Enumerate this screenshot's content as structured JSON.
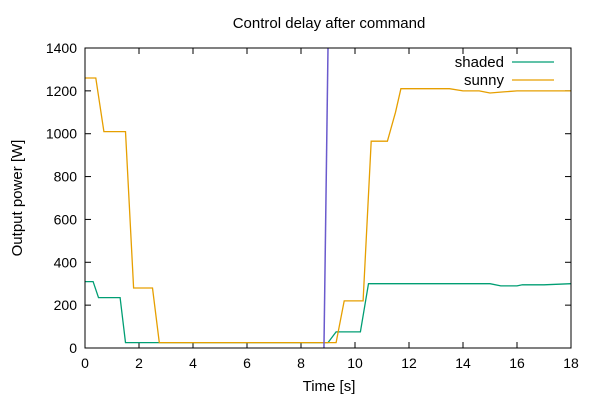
{
  "chart_data": {
    "type": "line",
    "title": "Control delay after command",
    "xlabel": "Time [s]",
    "ylabel": "Output power [W]",
    "xlim": [
      0,
      18
    ],
    "ylim": [
      0,
      1400
    ],
    "xticks": [
      0,
      2,
      4,
      6,
      8,
      10,
      12,
      14,
      16,
      18
    ],
    "yticks": [
      0,
      200,
      400,
      600,
      800,
      1000,
      1200,
      1400
    ],
    "grid": false,
    "legend_position": "top-right",
    "series": [
      {
        "name": "shaded",
        "color": "#009e73",
        "x": [
          0,
          0.3,
          0.5,
          1.3,
          1.5,
          2.8,
          9.0,
          9.3,
          9.7,
          10.2,
          10.5,
          12.0,
          14.0,
          15.0,
          15.4,
          16.0,
          16.2,
          17.0,
          18.0
        ],
        "y": [
          310,
          310,
          235,
          235,
          25,
          25,
          25,
          75,
          75,
          75,
          300,
          300,
          300,
          300,
          290,
          290,
          295,
          295,
          300
        ]
      },
      {
        "name": "sunny",
        "color": "#e69f00",
        "x": [
          0,
          0.4,
          0.7,
          1.5,
          1.8,
          2.5,
          2.75,
          9.0,
          9.3,
          9.6,
          10.3,
          10.6,
          11.2,
          11.5,
          11.7,
          13.5,
          14.0,
          14.6,
          15.0,
          15.5,
          16.0,
          18.0
        ],
        "y": [
          1260,
          1260,
          1010,
          1010,
          280,
          280,
          25,
          25,
          25,
          220,
          220,
          965,
          965,
          1100,
          1210,
          1210,
          1200,
          1200,
          1190,
          1195,
          1200,
          1200
        ]
      }
    ],
    "annotations": [
      {
        "type": "vertical-line",
        "x1": 8.85,
        "y1": 0,
        "x2": 9.0,
        "y2": 1400,
        "color": "#6a5acd"
      }
    ]
  }
}
